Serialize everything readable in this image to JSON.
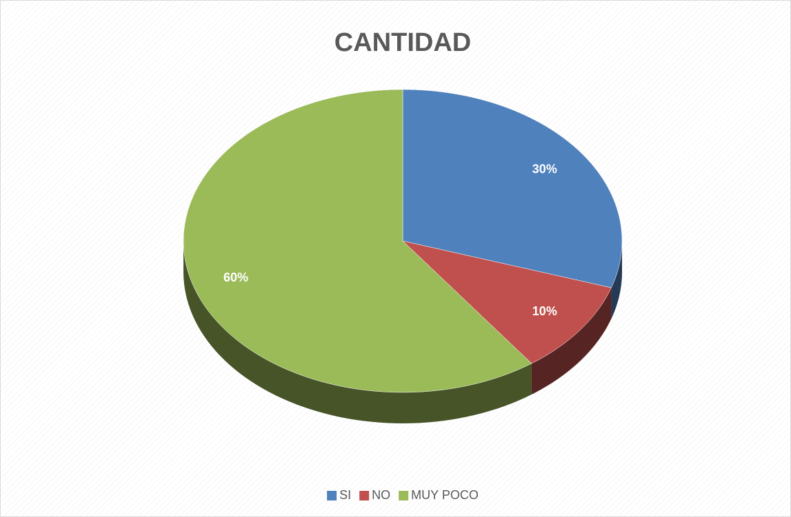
{
  "chart_data": {
    "type": "pie",
    "title": "CANTIDAD",
    "categories": [
      "SI",
      "NO",
      "MUY POCO"
    ],
    "values": [
      30,
      10,
      60
    ],
    "value_labels": [
      "30%",
      "10%",
      "60%"
    ],
    "colors": [
      "#4f81bd",
      "#c0504d",
      "#9bbb59"
    ],
    "legend": "bottom"
  }
}
